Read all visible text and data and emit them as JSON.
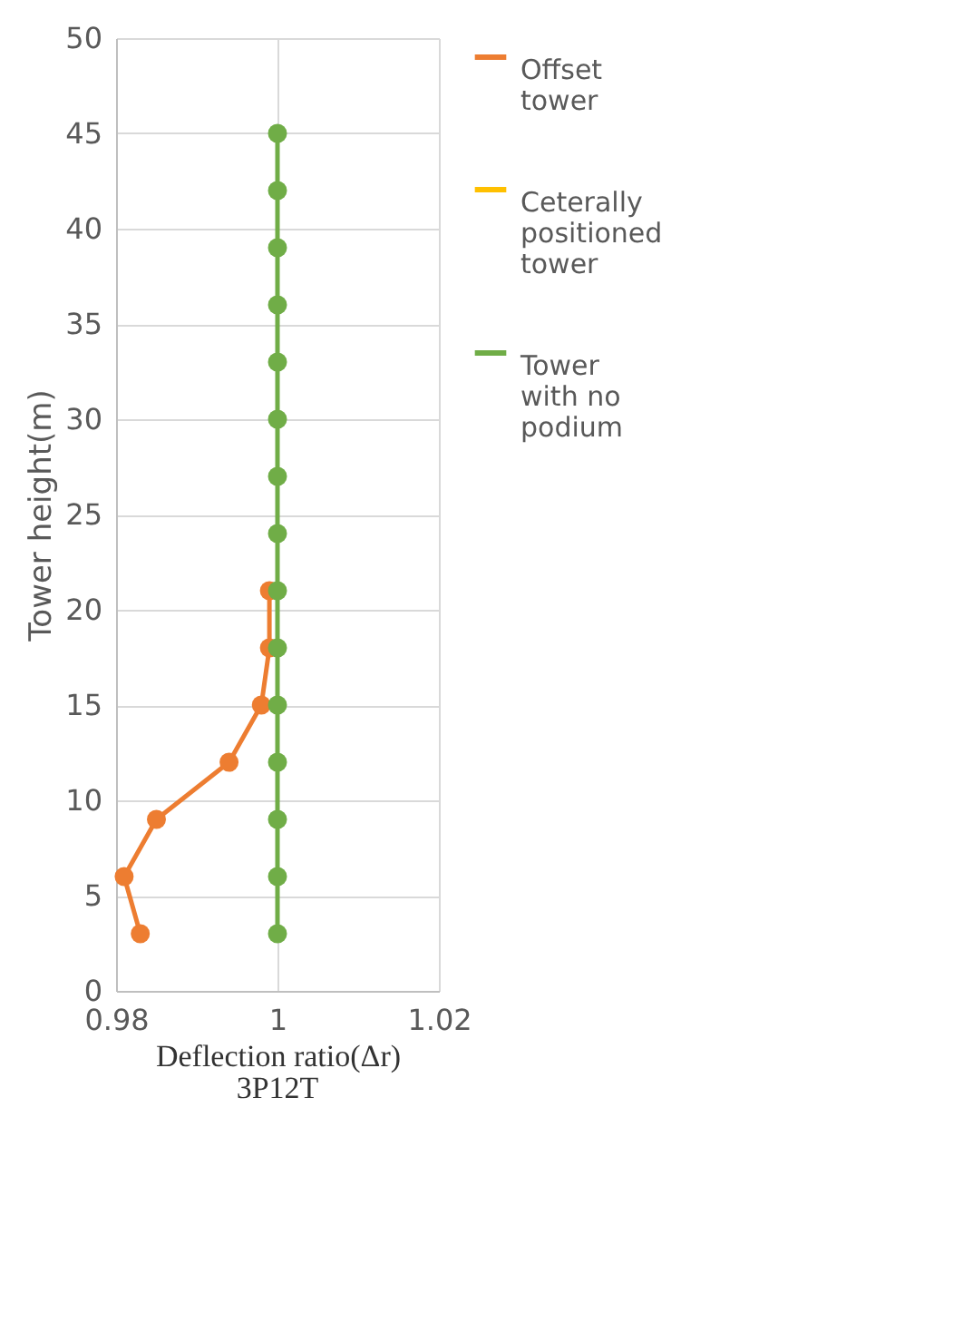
{
  "chart_data": {
    "type": "line",
    "title": "3P12T",
    "xlabel": "Deflection ratio(Δr)",
    "ylabel": "Tower height(m)",
    "xlim": [
      0.98,
      1.02
    ],
    "xticks": [
      0.98,
      1,
      1.02
    ],
    "ylim": [
      0,
      50
    ],
    "yticks": [
      0,
      5,
      10,
      15,
      20,
      25,
      30,
      35,
      40,
      45,
      50
    ],
    "grid": true,
    "legend": "right",
    "marker": "circle",
    "line_style": "solid",
    "series": [
      {
        "name": "Offset tower",
        "color": "#ed7d31",
        "x": [
          0.983,
          0.981,
          0.985,
          0.994,
          0.998,
          0.999,
          0.999
        ],
        "values": [
          3,
          6,
          9,
          12,
          15,
          18,
          21
        ]
      },
      {
        "name": "Ceterally positioned tower",
        "color": "#ffc000",
        "x": [
          null
        ],
        "values": [
          null
        ]
      },
      {
        "name": "Tower with no podium",
        "color": "#70ad47",
        "x": [
          1,
          1,
          1,
          1,
          1,
          1,
          1,
          1,
          1,
          1,
          1,
          1,
          1,
          1,
          1
        ],
        "values": [
          3,
          6,
          9,
          12,
          15,
          18,
          21,
          24,
          27,
          30,
          33,
          36,
          39,
          42,
          45
        ]
      }
    ]
  }
}
